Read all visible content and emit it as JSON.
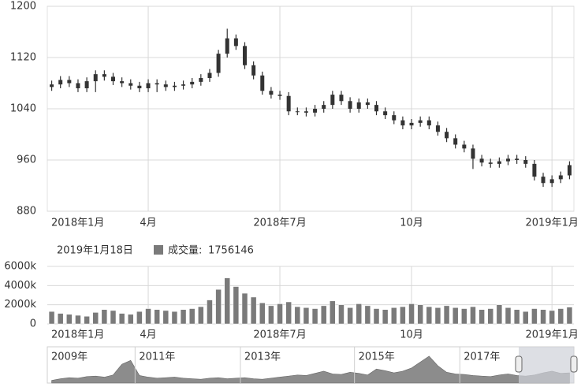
{
  "chart_data": {
    "type": "candlestick",
    "color": "#333333",
    "categories": [
      "2018年1月",
      null,
      null,
      null,
      null,
      null,
      null,
      null,
      null,
      null,
      null,
      "4月",
      null,
      null,
      null,
      null,
      null,
      null,
      null,
      null,
      null,
      null,
      null,
      null,
      null,
      null,
      "2018年7月",
      null,
      null,
      null,
      null,
      null,
      null,
      null,
      null,
      null,
      null,
      null,
      null,
      null,
      null,
      "10月",
      null,
      null,
      null,
      null,
      null,
      null,
      null,
      null,
      null,
      null,
      null,
      null,
      null,
      null,
      null,
      "2019年1月",
      null,
      null
    ],
    "open": [
      1074,
      1078,
      1085,
      1080,
      1072,
      1083,
      1094,
      1090,
      1083,
      1080,
      1076,
      1072,
      1080,
      1078,
      1074,
      1076,
      1078,
      1082,
      1088,
      1096,
      1126,
      1150,
      1138,
      1108,
      1092,
      1068,
      1062,
      1060,
      1036,
      1036,
      1034,
      1040,
      1046,
      1062,
      1052,
      1040,
      1050,
      1046,
      1036,
      1030,
      1022,
      1014,
      1018,
      1022,
      1014,
      1004,
      994,
      984,
      978,
      962,
      956,
      954,
      958,
      962,
      960,
      954,
      934,
      924,
      930,
      936
    ],
    "high": [
      1084,
      1091,
      1091,
      1086,
      1089,
      1100,
      1100,
      1096,
      1089,
      1086,
      1082,
      1086,
      1086,
      1084,
      1082,
      1084,
      1088,
      1094,
      1102,
      1132,
      1165,
      1156,
      1144,
      1114,
      1098,
      1074,
      1068,
      1066,
      1042,
      1042,
      1046,
      1052,
      1068,
      1068,
      1058,
      1056,
      1056,
      1052,
      1042,
      1036,
      1028,
      1024,
      1028,
      1028,
      1020,
      1010,
      1000,
      990,
      984,
      968,
      962,
      964,
      968,
      968,
      966,
      960,
      940,
      936,
      942,
      958
    ],
    "low": [
      1068,
      1072,
      1074,
      1066,
      1066,
      1066,
      1084,
      1077,
      1074,
      1070,
      1066,
      1066,
      1066,
      1068,
      1068,
      1070,
      1072,
      1076,
      1082,
      1090,
      1120,
      1132,
      1102,
      1086,
      1062,
      1056,
      1054,
      1030,
      1030,
      1028,
      1028,
      1034,
      1040,
      1046,
      1034,
      1034,
      1040,
      1030,
      1024,
      1016,
      1008,
      1008,
      1012,
      1008,
      998,
      988,
      978,
      972,
      946,
      950,
      948,
      948,
      952,
      954,
      948,
      928,
      918,
      918,
      924,
      930
    ],
    "close": [
      1078,
      1085,
      1080,
      1072,
      1083,
      1094,
      1090,
      1083,
      1080,
      1076,
      1072,
      1080,
      1078,
      1074,
      1076,
      1078,
      1082,
      1088,
      1096,
      1126,
      1150,
      1138,
      1108,
      1092,
      1068,
      1062,
      1060,
      1036,
      1036,
      1034,
      1040,
      1046,
      1062,
      1052,
      1040,
      1050,
      1046,
      1036,
      1030,
      1022,
      1014,
      1018,
      1022,
      1014,
      1004,
      994,
      984,
      978,
      962,
      956,
      954,
      958,
      962,
      960,
      954,
      934,
      924,
      930,
      936,
      952
    ],
    "ylim": [
      880,
      1200
    ],
    "yticks": [
      880,
      960,
      1040,
      1120,
      1200
    ],
    "grid": true,
    "readout": {
      "date": "2019年1月18日",
      "label": "成交量:",
      "value": 1756146
    },
    "volume": {
      "color": "#7a7a7a",
      "ylim": [
        0,
        6000000
      ],
      "yticks": [
        {
          "value": 0,
          "label": "0"
        },
        {
          "value": 2000000,
          "label": "2000k"
        },
        {
          "value": 4000000,
          "label": "4000k"
        },
        {
          "value": 6000000,
          "label": "6000k"
        }
      ],
      "values": [
        1300000,
        1100000,
        1000000,
        900000,
        800000,
        1200000,
        1500000,
        1400000,
        1100000,
        1000000,
        1300000,
        1600000,
        1500000,
        1400000,
        1300000,
        1500000,
        1600000,
        1800000,
        2500000,
        3600000,
        4800000,
        3900000,
        3200000,
        2800000,
        2200000,
        1900000,
        2100000,
        2300000,
        1800000,
        1700000,
        1600000,
        1900000,
        2400000,
        2000000,
        1700000,
        2100000,
        1900000,
        1600000,
        1500000,
        1700000,
        1800000,
        2100000,
        2000000,
        1800000,
        1700000,
        1900000,
        1700000,
        1600000,
        1800000,
        1500000,
        1600000,
        2000000,
        1700000,
        1500000,
        1300000,
        1600000,
        1500000,
        1400000,
        1600000,
        1756146
      ]
    },
    "navigator": {
      "color": "#8c8c8c",
      "ylim": [
        0,
        6000000
      ],
      "categories": [
        "2009年",
        null,
        null,
        null,
        null,
        null,
        null,
        null,
        null,
        null,
        "2011年",
        null,
        null,
        null,
        null,
        null,
        null,
        null,
        null,
        null,
        null,
        null,
        "2013年",
        null,
        null,
        null,
        null,
        null,
        null,
        null,
        null,
        null,
        null,
        null,
        null,
        "2015年",
        null,
        null,
        null,
        null,
        null,
        null,
        null,
        null,
        null,
        null,
        null,
        "2017年",
        null,
        null,
        null,
        null,
        null,
        null,
        null,
        null,
        null,
        null,
        null,
        null
      ],
      "values": [
        500000,
        800000,
        1000000,
        900000,
        1200000,
        1300000,
        1100000,
        1500000,
        3500000,
        4200000,
        1400000,
        1100000,
        900000,
        1000000,
        1100000,
        900000,
        800000,
        700000,
        900000,
        1000000,
        800000,
        900000,
        1000000,
        800000,
        700000,
        900000,
        1100000,
        1300000,
        1500000,
        1400000,
        1800000,
        2200000,
        1700000,
        1600000,
        2000000,
        1800000,
        1500000,
        2600000,
        2300000,
        1900000,
        2200000,
        2800000,
        3900000,
        5000000,
        3200000,
        2000000,
        1700000,
        1600000,
        1400000,
        1300000,
        1200000,
        1500000,
        1700000,
        1400000,
        1300000,
        1500000,
        1900000,
        2200000,
        1800000,
        1900000
      ]
    }
  }
}
